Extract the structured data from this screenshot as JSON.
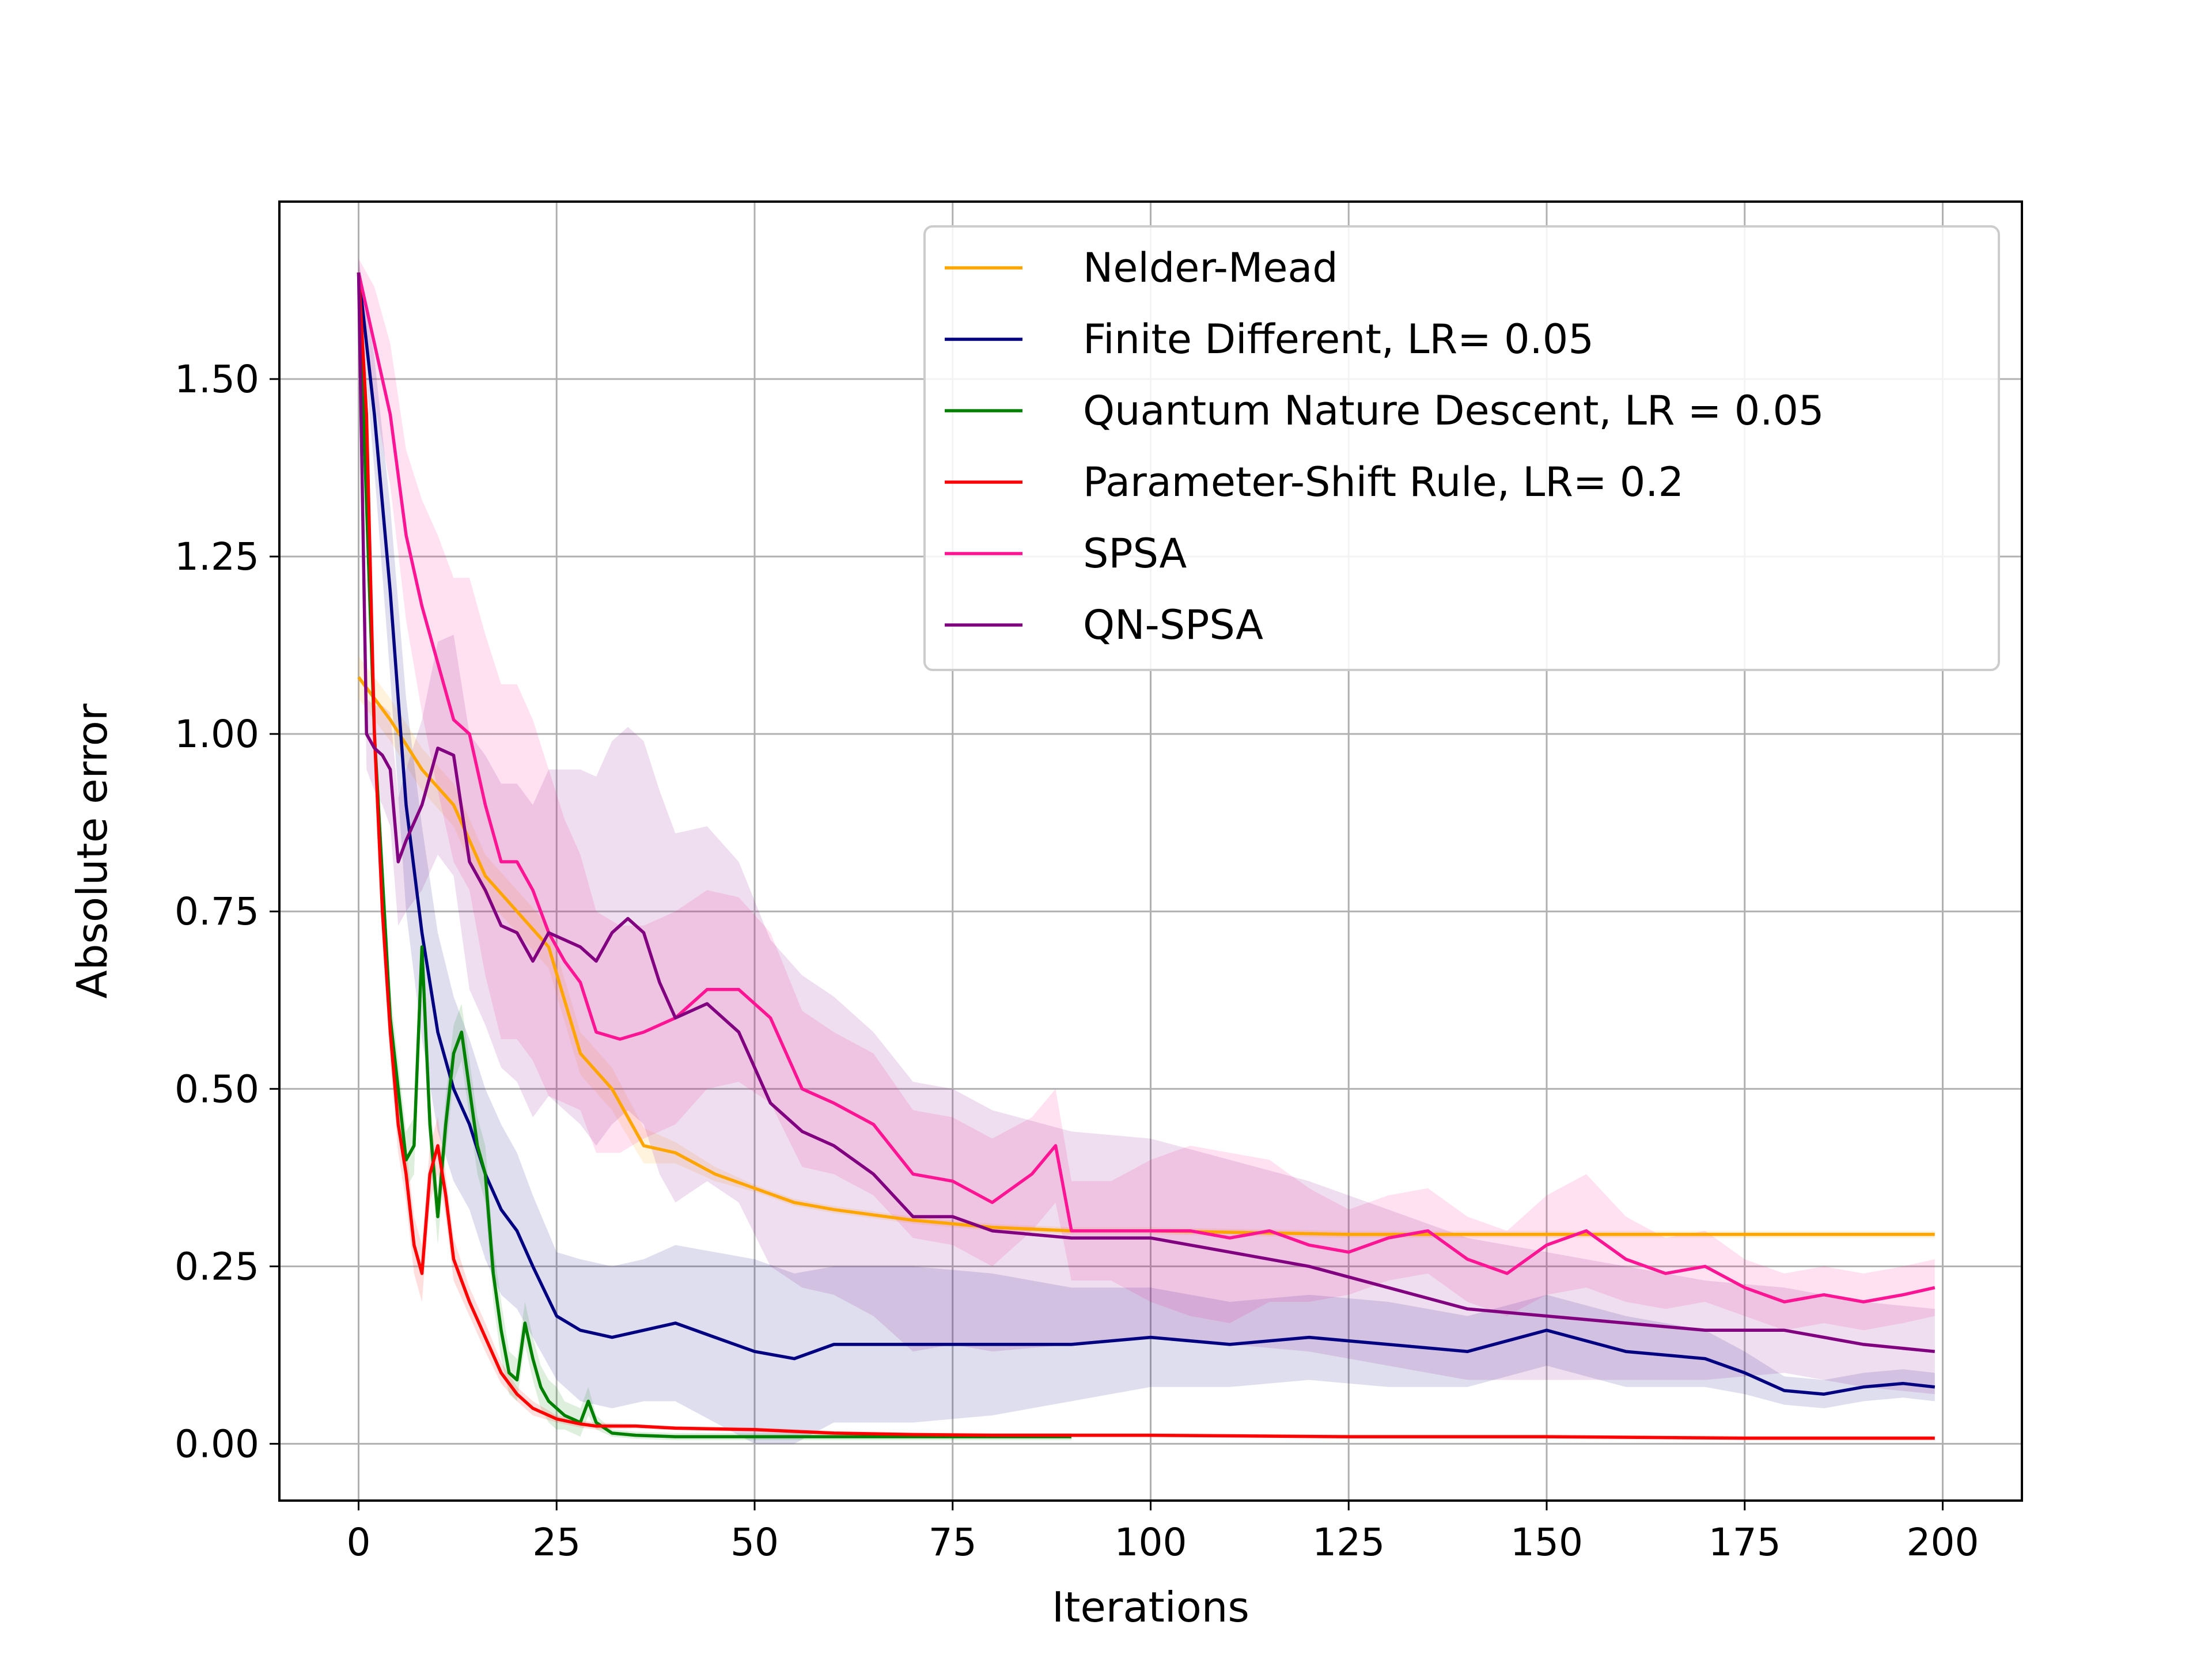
{
  "chart_data": {
    "type": "line",
    "title": "",
    "xlabel": "Iterations",
    "ylabel": "Absolute error",
    "xlim": [
      -10,
      210
    ],
    "ylim": [
      -0.08,
      1.75
    ],
    "xticks": [
      0,
      25,
      50,
      75,
      100,
      125,
      150,
      175,
      200
    ],
    "xtick_labels": [
      "0",
      "25",
      "50",
      "75",
      "100",
      "125",
      "150",
      "175",
      "200"
    ],
    "yticks": [
      0.0,
      0.25,
      0.5,
      0.75,
      1.0,
      1.25,
      1.5
    ],
    "ytick_labels": [
      "0.00",
      "0.25",
      "0.50",
      "0.75",
      "1.00",
      "1.25",
      "1.50"
    ],
    "grid": true,
    "legend_position": "upper right",
    "series": [
      {
        "name": "Nelder-Mead",
        "color": "#ffa500",
        "x": [
          0,
          4,
          8,
          12,
          16,
          20,
          24,
          28,
          32,
          36,
          40,
          45,
          50,
          55,
          60,
          70,
          80,
          90,
          100,
          125,
          150,
          175,
          199
        ],
        "values": [
          1.08,
          1.02,
          0.95,
          0.9,
          0.8,
          0.75,
          0.7,
          0.55,
          0.5,
          0.42,
          0.41,
          0.38,
          0.36,
          0.34,
          0.33,
          0.315,
          0.305,
          0.3,
          0.3,
          0.295,
          0.295,
          0.295,
          0.295
        ],
        "band": [
          0.03,
          0.03,
          0.03,
          0.03,
          0.03,
          0.03,
          0.03,
          0.03,
          0.03,
          0.025,
          0.015,
          0.01,
          0.005,
          0.005,
          0.005,
          0.005,
          0.005,
          0.005,
          0.005,
          0.005,
          0.005,
          0.005,
          0.005
        ]
      },
      {
        "name": "Finite Different, LR= 0.05",
        "color": "#000080",
        "x": [
          0,
          2,
          4,
          6,
          8,
          10,
          12,
          14,
          16,
          18,
          20,
          22,
          25,
          28,
          32,
          36,
          40,
          45,
          50,
          55,
          60,
          70,
          80,
          90,
          100,
          110,
          120,
          130,
          140,
          150,
          160,
          170,
          175,
          180,
          185,
          190,
          195,
          199
        ],
        "values": [
          1.65,
          1.45,
          1.2,
          0.9,
          0.72,
          0.58,
          0.5,
          0.45,
          0.38,
          0.33,
          0.3,
          0.25,
          0.18,
          0.16,
          0.15,
          0.16,
          0.17,
          0.15,
          0.13,
          0.12,
          0.14,
          0.14,
          0.14,
          0.14,
          0.15,
          0.14,
          0.15,
          0.14,
          0.13,
          0.16,
          0.13,
          0.12,
          0.1,
          0.075,
          0.07,
          0.08,
          0.085,
          0.08
        ],
        "band": [
          0.02,
          0.08,
          0.12,
          0.15,
          0.15,
          0.14,
          0.13,
          0.12,
          0.12,
          0.12,
          0.11,
          0.1,
          0.09,
          0.1,
          0.1,
          0.1,
          0.11,
          0.12,
          0.13,
          0.12,
          0.11,
          0.11,
          0.1,
          0.08,
          0.07,
          0.06,
          0.06,
          0.06,
          0.05,
          0.05,
          0.05,
          0.04,
          0.03,
          0.02,
          0.02,
          0.02,
          0.02,
          0.02
        ]
      },
      {
        "name": "Quantum Nature Descent, LR = 0.05",
        "color": "#008000",
        "x": [
          0,
          2,
          4,
          6,
          7,
          8,
          9,
          10,
          11,
          12,
          13,
          14,
          15,
          16,
          17,
          18,
          19,
          20,
          21,
          22,
          23,
          24,
          25,
          26,
          27,
          28,
          29,
          30,
          32,
          35,
          40,
          50,
          60,
          70,
          80,
          90
        ],
        "values": [
          1.65,
          1.0,
          0.6,
          0.4,
          0.42,
          0.7,
          0.45,
          0.32,
          0.45,
          0.55,
          0.58,
          0.5,
          0.42,
          0.38,
          0.24,
          0.16,
          0.1,
          0.09,
          0.17,
          0.12,
          0.08,
          0.06,
          0.05,
          0.04,
          0.035,
          0.03,
          0.06,
          0.03,
          0.015,
          0.012,
          0.01,
          0.01,
          0.01,
          0.01,
          0.01,
          0.01
        ],
        "band": [
          0.01,
          0.04,
          0.04,
          0.04,
          0.04,
          0.04,
          0.04,
          0.04,
          0.04,
          0.04,
          0.04,
          0.04,
          0.04,
          0.04,
          0.04,
          0.04,
          0.03,
          0.03,
          0.03,
          0.03,
          0.03,
          0.03,
          0.03,
          0.02,
          0.02,
          0.02,
          0.02,
          0.01,
          0.005,
          0.005,
          0.005,
          0.005,
          0.005,
          0.005,
          0.005,
          0.005
        ]
      },
      {
        "name": "Parameter-Shift Rule, LR= 0.2",
        "color": "#ff0000",
        "x": [
          0,
          1,
          2,
          3,
          4,
          5,
          6,
          7,
          8,
          9,
          10,
          11,
          12,
          14,
          16,
          18,
          20,
          22,
          25,
          28,
          30,
          35,
          40,
          50,
          60,
          70,
          80,
          90,
          100,
          125,
          150,
          175,
          199
        ],
        "values": [
          1.65,
          1.45,
          1.0,
          0.75,
          0.58,
          0.45,
          0.38,
          0.28,
          0.24,
          0.38,
          0.42,
          0.35,
          0.26,
          0.2,
          0.15,
          0.1,
          0.07,
          0.05,
          0.035,
          0.028,
          0.025,
          0.025,
          0.022,
          0.02,
          0.015,
          0.013,
          0.012,
          0.012,
          0.012,
          0.01,
          0.01,
          0.008,
          0.008
        ],
        "band": [
          0.01,
          0.04,
          0.04,
          0.04,
          0.04,
          0.04,
          0.04,
          0.04,
          0.04,
          0.04,
          0.04,
          0.03,
          0.03,
          0.02,
          0.02,
          0.015,
          0.01,
          0.01,
          0.005,
          0.005,
          0.005,
          0.003,
          0.003,
          0.003,
          0.003,
          0.003,
          0.003,
          0.003,
          0.003,
          0.003,
          0.003,
          0.003,
          0.003
        ]
      },
      {
        "name": "SPSA",
        "color": "#ff1493",
        "x": [
          0,
          2,
          4,
          6,
          8,
          10,
          12,
          14,
          16,
          18,
          20,
          22,
          24,
          26,
          28,
          30,
          33,
          36,
          40,
          44,
          48,
          52,
          56,
          60,
          65,
          70,
          75,
          80,
          85,
          88,
          90,
          95,
          100,
          105,
          110,
          115,
          120,
          125,
          130,
          135,
          140,
          145,
          150,
          155,
          160,
          165,
          170,
          175,
          180,
          185,
          190,
          195,
          199
        ],
        "values": [
          1.65,
          1.55,
          1.45,
          1.28,
          1.18,
          1.1,
          1.02,
          1.0,
          0.9,
          0.82,
          0.82,
          0.78,
          0.72,
          0.68,
          0.65,
          0.58,
          0.57,
          0.58,
          0.6,
          0.64,
          0.64,
          0.6,
          0.5,
          0.48,
          0.45,
          0.38,
          0.37,
          0.34,
          0.38,
          0.42,
          0.3,
          0.3,
          0.3,
          0.3,
          0.29,
          0.3,
          0.28,
          0.27,
          0.29,
          0.3,
          0.26,
          0.24,
          0.28,
          0.3,
          0.26,
          0.24,
          0.25,
          0.22,
          0.2,
          0.21,
          0.2,
          0.21,
          0.22
        ],
        "band": [
          0.02,
          0.08,
          0.1,
          0.12,
          0.15,
          0.18,
          0.2,
          0.22,
          0.24,
          0.25,
          0.25,
          0.24,
          0.23,
          0.2,
          0.18,
          0.17,
          0.16,
          0.15,
          0.15,
          0.14,
          0.13,
          0.12,
          0.11,
          0.1,
          0.1,
          0.09,
          0.09,
          0.09,
          0.08,
          0.08,
          0.07,
          0.07,
          0.1,
          0.12,
          0.12,
          0.1,
          0.08,
          0.06,
          0.06,
          0.06,
          0.06,
          0.06,
          0.07,
          0.08,
          0.06,
          0.05,
          0.05,
          0.04,
          0.04,
          0.04,
          0.04,
          0.04,
          0.04
        ]
      },
      {
        "name": "QN-SPSA",
        "color": "#800080",
        "x": [
          0,
          1,
          2,
          3,
          4,
          5,
          6,
          8,
          10,
          12,
          14,
          16,
          18,
          20,
          22,
          24,
          26,
          28,
          30,
          32,
          34,
          36,
          38,
          40,
          44,
          48,
          52,
          56,
          60,
          65,
          70,
          75,
          80,
          90,
          100,
          110,
          120,
          130,
          140,
          150,
          160,
          170,
          180,
          190,
          199
        ],
        "values": [
          1.65,
          1.0,
          0.98,
          0.97,
          0.95,
          0.82,
          0.85,
          0.9,
          0.98,
          0.97,
          0.82,
          0.78,
          0.73,
          0.72,
          0.68,
          0.72,
          0.71,
          0.7,
          0.68,
          0.72,
          0.74,
          0.72,
          0.65,
          0.6,
          0.62,
          0.58,
          0.48,
          0.44,
          0.42,
          0.38,
          0.32,
          0.32,
          0.3,
          0.29,
          0.29,
          0.27,
          0.25,
          0.22,
          0.19,
          0.18,
          0.17,
          0.16,
          0.16,
          0.14,
          0.13
        ],
        "band": [
          0.02,
          0.05,
          0.06,
          0.07,
          0.08,
          0.09,
          0.1,
          0.12,
          0.15,
          0.17,
          0.18,
          0.19,
          0.2,
          0.21,
          0.22,
          0.23,
          0.24,
          0.25,
          0.26,
          0.27,
          0.27,
          0.27,
          0.27,
          0.26,
          0.25,
          0.24,
          0.23,
          0.22,
          0.21,
          0.2,
          0.19,
          0.18,
          0.17,
          0.15,
          0.14,
          0.13,
          0.12,
          0.11,
          0.1,
          0.09,
          0.08,
          0.07,
          0.06,
          0.06,
          0.06
        ]
      }
    ]
  }
}
